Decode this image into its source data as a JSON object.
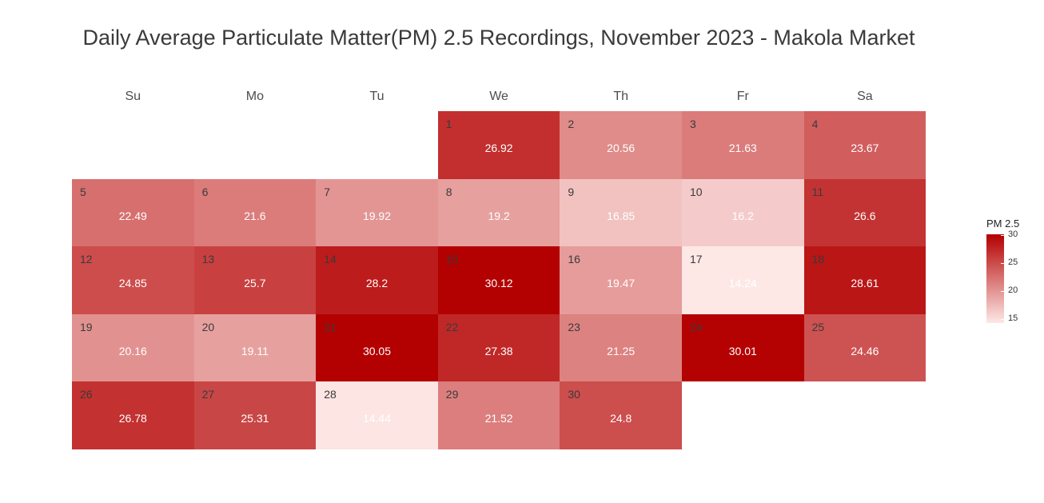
{
  "title": "Daily Average Particulate Matter(PM) 2.5 Recordings, November 2023 - Makola Market",
  "chart_data": {
    "type": "heatmap",
    "title": "Daily Average Particulate Matter(PM) 2.5 Recordings, November 2023 - Makola Market",
    "weekdays": [
      "Su",
      "Mo",
      "Tu",
      "We",
      "Th",
      "Fr",
      "Sa"
    ],
    "first_weekday_index": 3,
    "days": [
      {
        "day": "1",
        "value": 26.92
      },
      {
        "day": "2",
        "value": 20.56
      },
      {
        "day": "3",
        "value": 21.63
      },
      {
        "day": "4",
        "value": 23.67
      },
      {
        "day": "5",
        "value": 22.49
      },
      {
        "day": "6",
        "value": 21.6
      },
      {
        "day": "7",
        "value": 19.92
      },
      {
        "day": "8",
        "value": 19.2
      },
      {
        "day": "9",
        "value": 16.85
      },
      {
        "day": "10",
        "value": 16.2
      },
      {
        "day": "11",
        "value": 26.6
      },
      {
        "day": "12",
        "value": 24.85
      },
      {
        "day": "13",
        "value": 25.7
      },
      {
        "day": "14",
        "value": 28.2
      },
      {
        "day": "15",
        "value": 30.12
      },
      {
        "day": "16",
        "value": 19.47
      },
      {
        "day": "17",
        "value": 14.24
      },
      {
        "day": "18",
        "value": 28.61
      },
      {
        "day": "19",
        "value": 20.16
      },
      {
        "day": "20",
        "value": 19.11
      },
      {
        "day": "21",
        "value": 30.05
      },
      {
        "day": "22",
        "value": 27.38
      },
      {
        "day": "23",
        "value": 21.25
      },
      {
        "day": "24",
        "value": 30.01
      },
      {
        "day": "25",
        "value": 24.46
      },
      {
        "day": "26",
        "value": 26.78
      },
      {
        "day": "27",
        "value": 25.31
      },
      {
        "day": "28",
        "value": 14.44
      },
      {
        "day": "29",
        "value": 21.52
      },
      {
        "day": "30",
        "value": 24.8
      }
    ],
    "color_scale": {
      "low": "#fde8e6",
      "high": "#b30000",
      "domain": [
        14.24,
        30.12
      ]
    },
    "legend": {
      "title": "PM 2.5",
      "ticks": [
        15,
        20,
        25,
        30
      ],
      "ticks_text": [
        "15",
        "20",
        "25",
        "30"
      ],
      "position": "right"
    }
  }
}
